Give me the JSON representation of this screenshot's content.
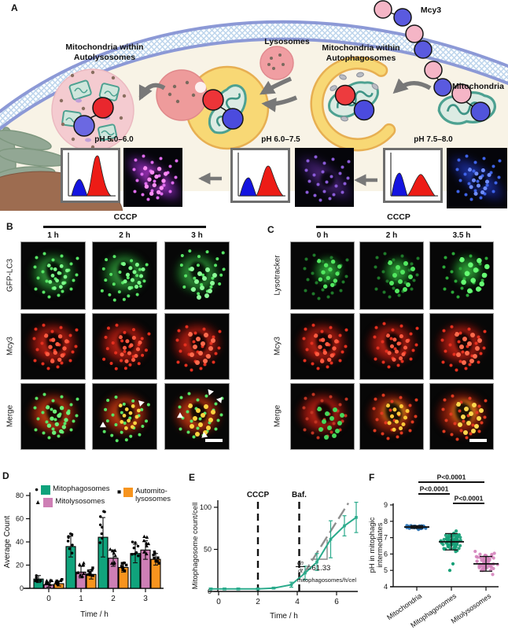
{
  "figure": {
    "panels": {
      "a": {
        "label": "A",
        "mcy3": "Mcy3",
        "autolysosomes_label_1": "Mitochondria within",
        "autolysosomes_label_2": "Autolysosomes",
        "lysosomes_label": "Lysosomes",
        "autophagosomes_label_1": "Mitochondria within",
        "autophagosomes_label_2": "Autophagosomes",
        "mitochondria_label": "Mitochondria",
        "ph_autolysosomes": "pH 5.0–6.0",
        "ph_autophagosomes": "pH 6.0–7.5",
        "ph_mitochondria": "pH 7.5–8.0"
      },
      "b": {
        "label": "B",
        "treatment": "CCCP",
        "timepoints": [
          "1 h",
          "2 h",
          "3 h"
        ],
        "row_labels": [
          "GFP-LC3",
          "Mcy3",
          "Merge"
        ]
      },
      "c": {
        "label": "C",
        "treatment": "CCCP",
        "timepoints": [
          "0 h",
          "2 h",
          "3.5 h"
        ],
        "row_labels": [
          "Lysotracker",
          "Mcy3",
          "Merge"
        ]
      },
      "d": {
        "label": "D"
      },
      "e": {
        "label": "E"
      },
      "f": {
        "label": "F"
      }
    }
  },
  "chart_data": [
    {
      "id": "D",
      "type": "bar",
      "categories": [
        "0",
        "1",
        "2",
        "3"
      ],
      "series": [
        {
          "name": "Mitophagosomes",
          "marker_glyph": "●",
          "color": "#10A37C",
          "values": [
            8,
            36,
            44,
            30
          ],
          "errors": [
            3,
            9,
            17,
            8
          ]
        },
        {
          "name": "Mitolysosomes",
          "marker_glyph": "▲",
          "color": "#CE7FB5",
          "values": [
            3,
            14,
            26,
            33
          ],
          "errors": [
            2,
            5,
            7,
            8
          ]
        },
        {
          "name": "Automito-lysosomes",
          "marker_glyph": "■",
          "color": "#F7941E",
          "values": [
            4,
            12,
            18,
            25
          ],
          "errors": [
            2,
            4,
            4,
            5
          ]
        }
      ],
      "xlabel": "Time / h",
      "ylabel": "Average Count",
      "ylim": [
        0,
        80
      ],
      "yticks": [
        0,
        20,
        40,
        60,
        80
      ],
      "grid": false,
      "legend_position": "top"
    },
    {
      "id": "E",
      "type": "line",
      "series": [
        {
          "name": "Mitophagosome count",
          "color": "#2BAB8C",
          "x": [
            -0.4,
            0.3,
            1.0,
            2.0,
            2.8,
            3.7,
            4.4,
            5.0,
            5.7,
            6.4,
            7.0
          ],
          "y": [
            3,
            3,
            3,
            3,
            4,
            8,
            22,
            35,
            62,
            78,
            88
          ],
          "err": [
            1,
            1,
            1,
            1,
            1,
            3,
            8,
            10,
            22,
            12,
            18
          ]
        }
      ],
      "xlabel": "Time / h",
      "ylabel": "Mitophagosome count/cell",
      "xticks": [
        0,
        2,
        4,
        6
      ],
      "yticks": [
        0,
        50,
        100
      ],
      "xlim": [
        -0.6,
        7.4
      ],
      "ylim": [
        0,
        110
      ],
      "annotations": {
        "vlines": [
          {
            "x": 2.0,
            "label": "CCCP"
          },
          {
            "x": 4.1,
            "label": "Baf."
          }
        ],
        "tangent": {
          "x1": 4.3,
          "y1": 20,
          "x2": 6.6,
          "y2": 105
        },
        "slope": {
          "numerator": "dn",
          "denominator": "dt",
          "value": "=61.33",
          "unit": "mitophagosomes/h/cel"
        }
      }
    },
    {
      "id": "F",
      "type": "scatter",
      "categories": [
        "Mitochondria",
        "Mitophagosomes",
        "Mitolysosomes"
      ],
      "groups": [
        {
          "name": "Mitochondria",
          "color": "#2E74B5",
          "n": 45,
          "mean": 7.65,
          "sd": 0.08,
          "min": 7.45,
          "max": 7.85,
          "outliers": []
        },
        {
          "name": "Mitophagosomes",
          "color": "#17A077",
          "n": 75,
          "mean": 6.75,
          "sd": 0.5,
          "min": 6.0,
          "max": 7.85,
          "outliers": [
            5.4,
            5.0
          ]
        },
        {
          "name": "Mitolysosomes",
          "color": "#D583BC",
          "n": 60,
          "mean": 5.4,
          "sd": 0.45,
          "min": 4.75,
          "max": 6.4,
          "outliers": []
        }
      ],
      "significance": [
        {
          "from": 0,
          "to": 2,
          "label": "P<0.0001"
        },
        {
          "from": 0,
          "to": 1,
          "label": "P<0.0001"
        },
        {
          "from": 1,
          "to": 2,
          "label": "P<0.0001"
        }
      ],
      "ylabel_lines": [
        "pH in mitophagic",
        "intermediates"
      ],
      "yticks": [
        4,
        5,
        6,
        7,
        8,
        9
      ],
      "ylim": [
        4,
        9
      ]
    }
  ]
}
